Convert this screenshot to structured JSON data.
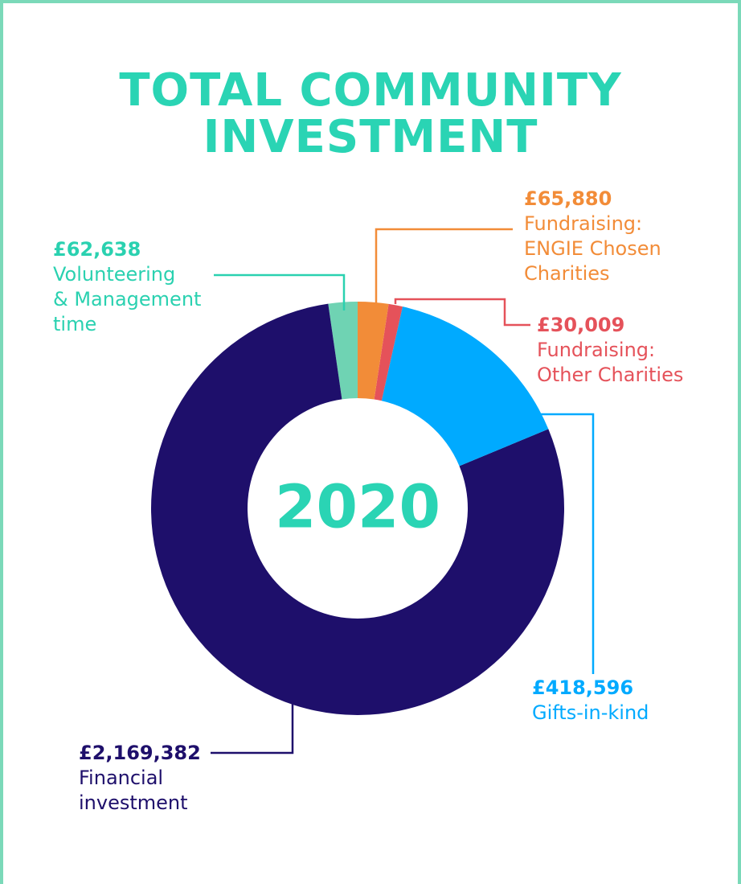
{
  "chart_data": {
    "type": "donut",
    "title": [
      "TOTAL COMMUNITY",
      "INVESTMENT"
    ],
    "center_label": "2020",
    "categories": [
      [
        "Fundraising:",
        "ENGIE Chosen",
        "Charities"
      ],
      [
        "Fundraising:",
        "Other Charities"
      ],
      [
        "Gifts-in-kind"
      ],
      [
        "Financial",
        "investment"
      ],
      [
        "Volunteering",
        "& Management",
        "time"
      ]
    ],
    "values": [
      65880,
      30009,
      418596,
      2169382,
      62638
    ],
    "value_labels": [
      "£65,880",
      "£30,009",
      "£418,596",
      "£2,169,382",
      "£62,638"
    ],
    "colors": [
      "#f28c38",
      "#e5525a",
      "#00aaff",
      "#1e0f6b",
      "#6fd3b3"
    ],
    "label_colors": [
      "#f28c38",
      "#e5525a",
      "#00aaff",
      "#1e0f6b",
      "#2ad1b0"
    ]
  }
}
